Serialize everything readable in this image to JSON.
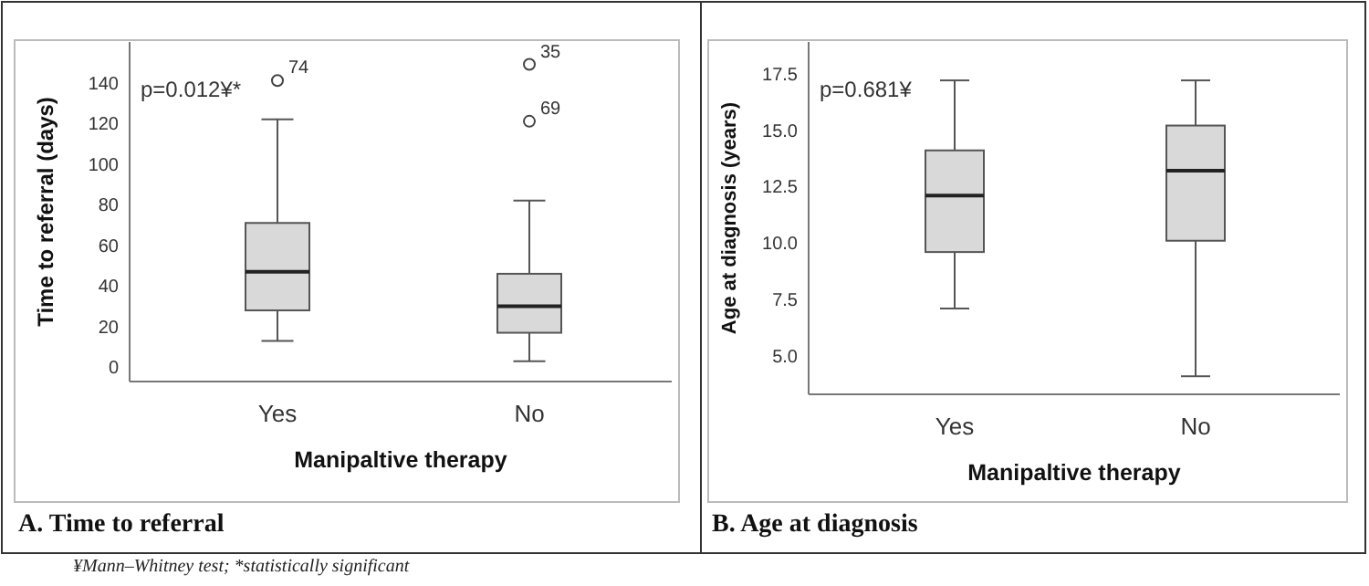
{
  "chart_data": [
    {
      "type": "box",
      "title": "A. Time to referral",
      "xlabel": "Manipaltive therapy",
      "ylabel": "Time to referral (days)",
      "categories": [
        "Yes",
        "No"
      ],
      "boxes": [
        {
          "low": 13,
          "q1": 28,
          "median": 47,
          "q3": 71,
          "high": 122,
          "outliers": [
            141
          ]
        },
        {
          "low": 3,
          "q1": 17,
          "median": 30,
          "q3": 46,
          "high": 82,
          "outliers": [
            121,
            149
          ]
        }
      ],
      "color": "#d9d9d9",
      "ylim": [
        -7,
        160
      ],
      "yticks": [
        0,
        20,
        40,
        60,
        80,
        100,
        120,
        140
      ],
      "grid": false,
      "annotations": [
        "p=0.012¥*",
        "74",
        "69",
        "35",
        "¥Mann–Whitney test; *statistically significant"
      ]
    },
    {
      "type": "box",
      "title": "B. Age at diagnosis",
      "xlabel": "Manipaltive therapy",
      "ylabel": "Age at diagnosis (years)",
      "categories": [
        "Yes",
        "No"
      ],
      "boxes": [
        {
          "low": 7.1,
          "q1": 9.6,
          "median": 12.1,
          "q3": 14.1,
          "high": 17.2
        },
        {
          "low": 4.1,
          "q1": 10.1,
          "median": 13.2,
          "q3": 15.2,
          "high": 17.2
        }
      ],
      "color": "#d9d9d9",
      "ylim": [
        3.3,
        18.9
      ],
      "yticks": [
        {
          "value": 5,
          "label": "5.0"
        },
        {
          "value": 7.5,
          "label": "7.5"
        },
        {
          "value": 10,
          "label": "10.0"
        },
        {
          "value": 12.5,
          "label": "12.5"
        },
        {
          "value": 15,
          "label": "15.0"
        },
        {
          "value": 17.5,
          "label": "17.5"
        }
      ],
      "grid": false,
      "annotations": [
        "p=0.681¥"
      ]
    }
  ]
}
